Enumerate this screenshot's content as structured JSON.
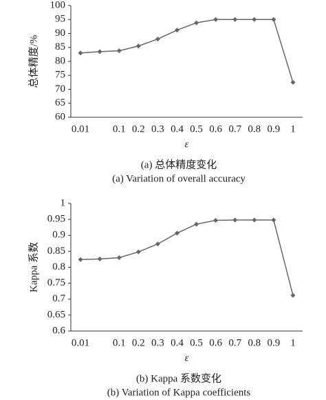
{
  "chart_data": [
    {
      "type": "line",
      "ylabel": "总体精度/%",
      "xlabel": "ε",
      "caption": [
        "(a) 总体精度变化",
        "(a) Variation of overall accuracy"
      ],
      "categories": [
        "0.01",
        null,
        "0.1",
        "0.2",
        "0.3",
        "0.4",
        "0.5",
        "0.6",
        "0.7",
        "0.8",
        "0.9",
        "1"
      ],
      "values": [
        83,
        83.5,
        83.8,
        85.5,
        88,
        91.2,
        93.8,
        95,
        95,
        95,
        95,
        72.5
      ],
      "color": "#666666",
      "ylim": [
        60,
        100
      ],
      "yticks": [
        60,
        65,
        70,
        75,
        80,
        85,
        90,
        95,
        100
      ],
      "grid": false
    },
    {
      "type": "line",
      "ylabel": "Kappa 系数",
      "xlabel": "ε",
      "caption": [
        "(b) Kappa 系数变化",
        "(b) Variation of Kappa coefficients"
      ],
      "categories": [
        "0.01",
        null,
        "0.1",
        "0.2",
        "0.3",
        "0.4",
        "0.5",
        "0.6",
        "0.7",
        "0.8",
        "0.9",
        "1"
      ],
      "values": [
        0.824,
        0.826,
        0.83,
        0.848,
        0.873,
        0.907,
        0.935,
        0.947,
        0.948,
        0.948,
        0.948,
        0.712
      ],
      "color": "#666666",
      "ylim": [
        0.6,
        1
      ],
      "yticks": [
        0.6,
        0.65,
        0.7,
        0.75,
        0.8,
        0.85,
        0.9,
        0.95,
        1
      ],
      "grid": false
    }
  ]
}
